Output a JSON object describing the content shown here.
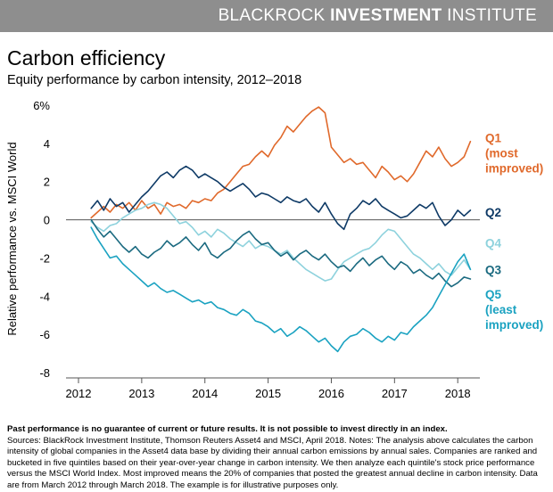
{
  "header": {
    "brand_light": "BLACKROCK",
    "brand_bold": "INVESTMENT",
    "brand_rest": "INSTITUTE"
  },
  "title": "Carbon efficiency",
  "subtitle": "Equity performance by carbon intensity, 2012–2018",
  "footnote": {
    "bold": "Past performance is no guarantee of current or future results. It is not possible to invest directly in an index.",
    "text": "Sources: BlackRock Investment Institute, Thomson Reuters Asset4 and MSCI, April 2018. Notes: The analysis above calculates the carbon intensity of global companies in the Asset4 data base by dividing their annual carbon emissions by annual sales. Companies are ranked and bucketed in five quintiles based on their year-over-year change in carbon intensity. We then analyze each quintile's stock price performance versus the MSCI World Index. Most improved means the 20% of companies that posted the greatest annual decline in carbon intensity. Data are from March 2012 through March 2018. The example is for illustrative purposes only."
  },
  "chart_data": {
    "type": "line",
    "ylabel": "Relative performance vs. MSCI World",
    "ylim": [
      -8,
      6
    ],
    "yticks": [
      6,
      4,
      2,
      0,
      -2,
      -4,
      -6,
      -8
    ],
    "ytick_labels": [
      "6%",
      "4",
      "2",
      "0",
      "-2",
      "-4",
      "-6",
      "-8"
    ],
    "xlim": [
      2012,
      2018.35
    ],
    "xticks": [
      2012,
      2013,
      2014,
      2015,
      2016,
      2017,
      2018
    ],
    "xtick_labels": [
      "2012",
      "2013",
      "2014",
      "2015",
      "2016",
      "2017",
      "2018"
    ],
    "series": [
      {
        "name": "Q1 (most improved)",
        "label_lines": [
          "Q1",
          "(most",
          "improved)"
        ],
        "color": "#e0692b",
        "x": [
          2012.2,
          2012.3,
          2012.4,
          2012.5,
          2012.6,
          2012.7,
          2012.8,
          2012.9,
          2013.0,
          2013.1,
          2013.2,
          2013.3,
          2013.4,
          2013.5,
          2013.6,
          2013.7,
          2013.8,
          2013.9,
          2014.0,
          2014.1,
          2014.2,
          2014.3,
          2014.4,
          2014.5,
          2014.6,
          2014.7,
          2014.8,
          2014.9,
          2015.0,
          2015.1,
          2015.2,
          2015.3,
          2015.4,
          2015.5,
          2015.6,
          2015.7,
          2015.8,
          2015.9,
          2016.0,
          2016.1,
          2016.2,
          2016.3,
          2016.4,
          2016.5,
          2016.6,
          2016.7,
          2016.8,
          2016.9,
          2017.0,
          2017.1,
          2017.2,
          2017.3,
          2017.4,
          2017.5,
          2017.6,
          2017.7,
          2017.8,
          2017.9,
          2018.0,
          2018.1,
          2018.2
        ],
        "values": [
          0.1,
          0.4,
          0.7,
          0.4,
          0.8,
          0.6,
          0.9,
          0.5,
          1.0,
          0.6,
          0.8,
          0.3,
          0.9,
          0.7,
          0.8,
          0.6,
          1.0,
          0.9,
          1.1,
          1.0,
          1.4,
          1.6,
          2.0,
          2.4,
          2.8,
          2.9,
          3.3,
          3.6,
          3.3,
          3.9,
          4.3,
          4.9,
          4.6,
          5.0,
          5.4,
          5.7,
          5.9,
          5.6,
          3.8,
          3.4,
          3.0,
          3.2,
          2.9,
          3.0,
          2.6,
          2.2,
          2.8,
          2.5,
          2.1,
          2.3,
          2.0,
          2.4,
          3.0,
          3.6,
          3.3,
          3.8,
          3.2,
          2.8,
          3.0,
          3.3,
          4.1
        ]
      },
      {
        "name": "Q2",
        "label_lines": [
          "Q2"
        ],
        "color": "#0e3a66",
        "x": [
          2012.2,
          2012.3,
          2012.4,
          2012.5,
          2012.6,
          2012.7,
          2012.8,
          2012.9,
          2013.0,
          2013.1,
          2013.2,
          2013.3,
          2013.4,
          2013.5,
          2013.6,
          2013.7,
          2013.8,
          2013.9,
          2014.0,
          2014.1,
          2014.2,
          2014.3,
          2014.4,
          2014.5,
          2014.6,
          2014.7,
          2014.8,
          2014.9,
          2015.0,
          2015.1,
          2015.2,
          2015.3,
          2015.4,
          2015.5,
          2015.6,
          2015.7,
          2015.8,
          2015.9,
          2016.0,
          2016.1,
          2016.2,
          2016.3,
          2016.4,
          2016.5,
          2016.6,
          2016.7,
          2016.8,
          2016.9,
          2017.0,
          2017.1,
          2017.2,
          2017.3,
          2017.4,
          2017.5,
          2017.6,
          2017.7,
          2017.8,
          2017.9,
          2018.0,
          2018.1,
          2018.2
        ],
        "values": [
          0.6,
          1.0,
          0.5,
          1.1,
          0.7,
          0.9,
          0.4,
          0.8,
          1.2,
          1.5,
          1.9,
          2.3,
          2.5,
          2.2,
          2.6,
          2.8,
          2.6,
          2.2,
          2.4,
          2.2,
          2.0,
          1.7,
          1.5,
          1.7,
          1.9,
          1.6,
          1.2,
          1.4,
          1.3,
          1.1,
          0.9,
          1.2,
          1.0,
          0.9,
          1.1,
          0.7,
          0.4,
          0.9,
          0.3,
          -0.2,
          -0.5,
          0.3,
          0.6,
          1.0,
          0.8,
          1.1,
          0.7,
          0.5,
          0.3,
          0.1,
          0.2,
          0.5,
          0.8,
          0.6,
          0.9,
          0.2,
          -0.3,
          0.0,
          0.5,
          0.2,
          0.5
        ]
      },
      {
        "name": "Q4",
        "label_lines": [
          "Q4"
        ],
        "color": "#8ed2dd",
        "x": [
          2012.2,
          2012.3,
          2012.4,
          2012.5,
          2012.6,
          2012.7,
          2012.8,
          2012.9,
          2013.0,
          2013.1,
          2013.2,
          2013.3,
          2013.4,
          2013.5,
          2013.6,
          2013.7,
          2013.8,
          2013.9,
          2014.0,
          2014.1,
          2014.2,
          2014.3,
          2014.4,
          2014.5,
          2014.6,
          2014.7,
          2014.8,
          2014.9,
          2015.0,
          2015.1,
          2015.2,
          2015.3,
          2015.4,
          2015.5,
          2015.6,
          2015.7,
          2015.8,
          2015.9,
          2016.0,
          2016.1,
          2016.2,
          2016.3,
          2016.4,
          2016.5,
          2016.6,
          2016.7,
          2016.8,
          2016.9,
          2017.0,
          2017.1,
          2017.2,
          2017.3,
          2017.4,
          2017.5,
          2017.6,
          2017.7,
          2017.8,
          2017.9,
          2018.0,
          2018.1,
          2018.2
        ],
        "values": [
          -0.1,
          -0.4,
          -0.6,
          -0.3,
          -0.2,
          0.1,
          0.3,
          0.5,
          0.6,
          0.8,
          0.9,
          0.8,
          0.6,
          0.2,
          -0.2,
          -0.1,
          -0.4,
          -0.8,
          -0.6,
          -0.9,
          -0.5,
          -0.7,
          -1.0,
          -1.2,
          -1.4,
          -1.1,
          -1.5,
          -1.3,
          -1.4,
          -1.6,
          -1.8,
          -1.6,
          -2.0,
          -2.3,
          -2.6,
          -2.8,
          -3.0,
          -3.2,
          -3.1,
          -2.6,
          -2.2,
          -2.0,
          -1.8,
          -1.6,
          -1.5,
          -1.2,
          -0.8,
          -0.5,
          -0.6,
          -1.0,
          -1.4,
          -1.8,
          -2.0,
          -2.3,
          -2.6,
          -2.3,
          -2.7,
          -2.9,
          -2.5,
          -2.1,
          -2.6
        ]
      },
      {
        "name": "Q3",
        "label_lines": [
          "Q3"
        ],
        "color": "#1b6a80",
        "x": [
          2012.2,
          2012.3,
          2012.4,
          2012.5,
          2012.6,
          2012.7,
          2012.8,
          2012.9,
          2013.0,
          2013.1,
          2013.2,
          2013.3,
          2013.4,
          2013.5,
          2013.6,
          2013.7,
          2013.8,
          2013.9,
          2014.0,
          2014.1,
          2014.2,
          2014.3,
          2014.4,
          2014.5,
          2014.6,
          2014.7,
          2014.8,
          2014.9,
          2015.0,
          2015.1,
          2015.2,
          2015.3,
          2015.4,
          2015.5,
          2015.6,
          2015.7,
          2015.8,
          2015.9,
          2016.0,
          2016.1,
          2016.2,
          2016.3,
          2016.4,
          2016.5,
          2016.6,
          2016.7,
          2016.8,
          2016.9,
          2017.0,
          2017.1,
          2017.2,
          2017.3,
          2017.4,
          2017.5,
          2017.6,
          2017.7,
          2017.8,
          2017.9,
          2018.0,
          2018.1,
          2018.2
        ],
        "values": [
          0.0,
          -0.5,
          -0.9,
          -0.6,
          -1.0,
          -1.4,
          -1.7,
          -1.4,
          -1.8,
          -2.0,
          -1.7,
          -1.5,
          -1.1,
          -1.4,
          -1.2,
          -0.9,
          -1.3,
          -1.6,
          -1.2,
          -1.8,
          -2.0,
          -1.7,
          -1.5,
          -1.1,
          -0.8,
          -0.6,
          -1.0,
          -1.3,
          -1.2,
          -1.6,
          -1.9,
          -1.7,
          -2.1,
          -1.8,
          -1.6,
          -1.9,
          -2.1,
          -1.8,
          -2.2,
          -2.5,
          -2.4,
          -2.7,
          -2.3,
          -2.0,
          -2.4,
          -2.1,
          -1.9,
          -2.3,
          -2.6,
          -2.2,
          -2.4,
          -2.8,
          -2.6,
          -2.9,
          -3.1,
          -2.8,
          -3.2,
          -3.5,
          -3.3,
          -3.0,
          -3.1
        ]
      },
      {
        "name": "Q5 (least improved)",
        "label_lines": [
          "Q5",
          "(least",
          "improved)"
        ],
        "color": "#1aa2c1",
        "x": [
          2012.2,
          2012.3,
          2012.4,
          2012.5,
          2012.6,
          2012.7,
          2012.8,
          2012.9,
          2013.0,
          2013.1,
          2013.2,
          2013.3,
          2013.4,
          2013.5,
          2013.6,
          2013.7,
          2013.8,
          2013.9,
          2014.0,
          2014.1,
          2014.2,
          2014.3,
          2014.4,
          2014.5,
          2014.6,
          2014.7,
          2014.8,
          2014.9,
          2015.0,
          2015.1,
          2015.2,
          2015.3,
          2015.4,
          2015.5,
          2015.6,
          2015.7,
          2015.8,
          2015.9,
          2016.0,
          2016.1,
          2016.2,
          2016.3,
          2016.4,
          2016.5,
          2016.6,
          2016.7,
          2016.8,
          2016.9,
          2017.0,
          2017.1,
          2017.2,
          2017.3,
          2017.4,
          2017.5,
          2017.6,
          2017.7,
          2017.8,
          2017.9,
          2018.0,
          2018.1,
          2018.2
        ],
        "values": [
          -0.4,
          -1.0,
          -1.5,
          -2.0,
          -1.9,
          -2.3,
          -2.6,
          -2.9,
          -3.2,
          -3.5,
          -3.3,
          -3.6,
          -3.8,
          -3.7,
          -3.9,
          -4.1,
          -4.3,
          -4.2,
          -4.4,
          -4.3,
          -4.6,
          -4.7,
          -4.9,
          -5.0,
          -4.7,
          -4.9,
          -5.3,
          -5.4,
          -5.6,
          -5.9,
          -5.7,
          -6.1,
          -5.9,
          -5.6,
          -5.8,
          -6.1,
          -6.4,
          -6.2,
          -6.6,
          -6.9,
          -6.4,
          -6.1,
          -6.0,
          -5.7,
          -5.9,
          -6.2,
          -6.4,
          -6.1,
          -6.3,
          -5.9,
          -6.0,
          -5.6,
          -5.3,
          -5.0,
          -4.6,
          -4.0,
          -3.4,
          -2.8,
          -2.2,
          -1.8,
          -2.6
        ]
      }
    ]
  }
}
